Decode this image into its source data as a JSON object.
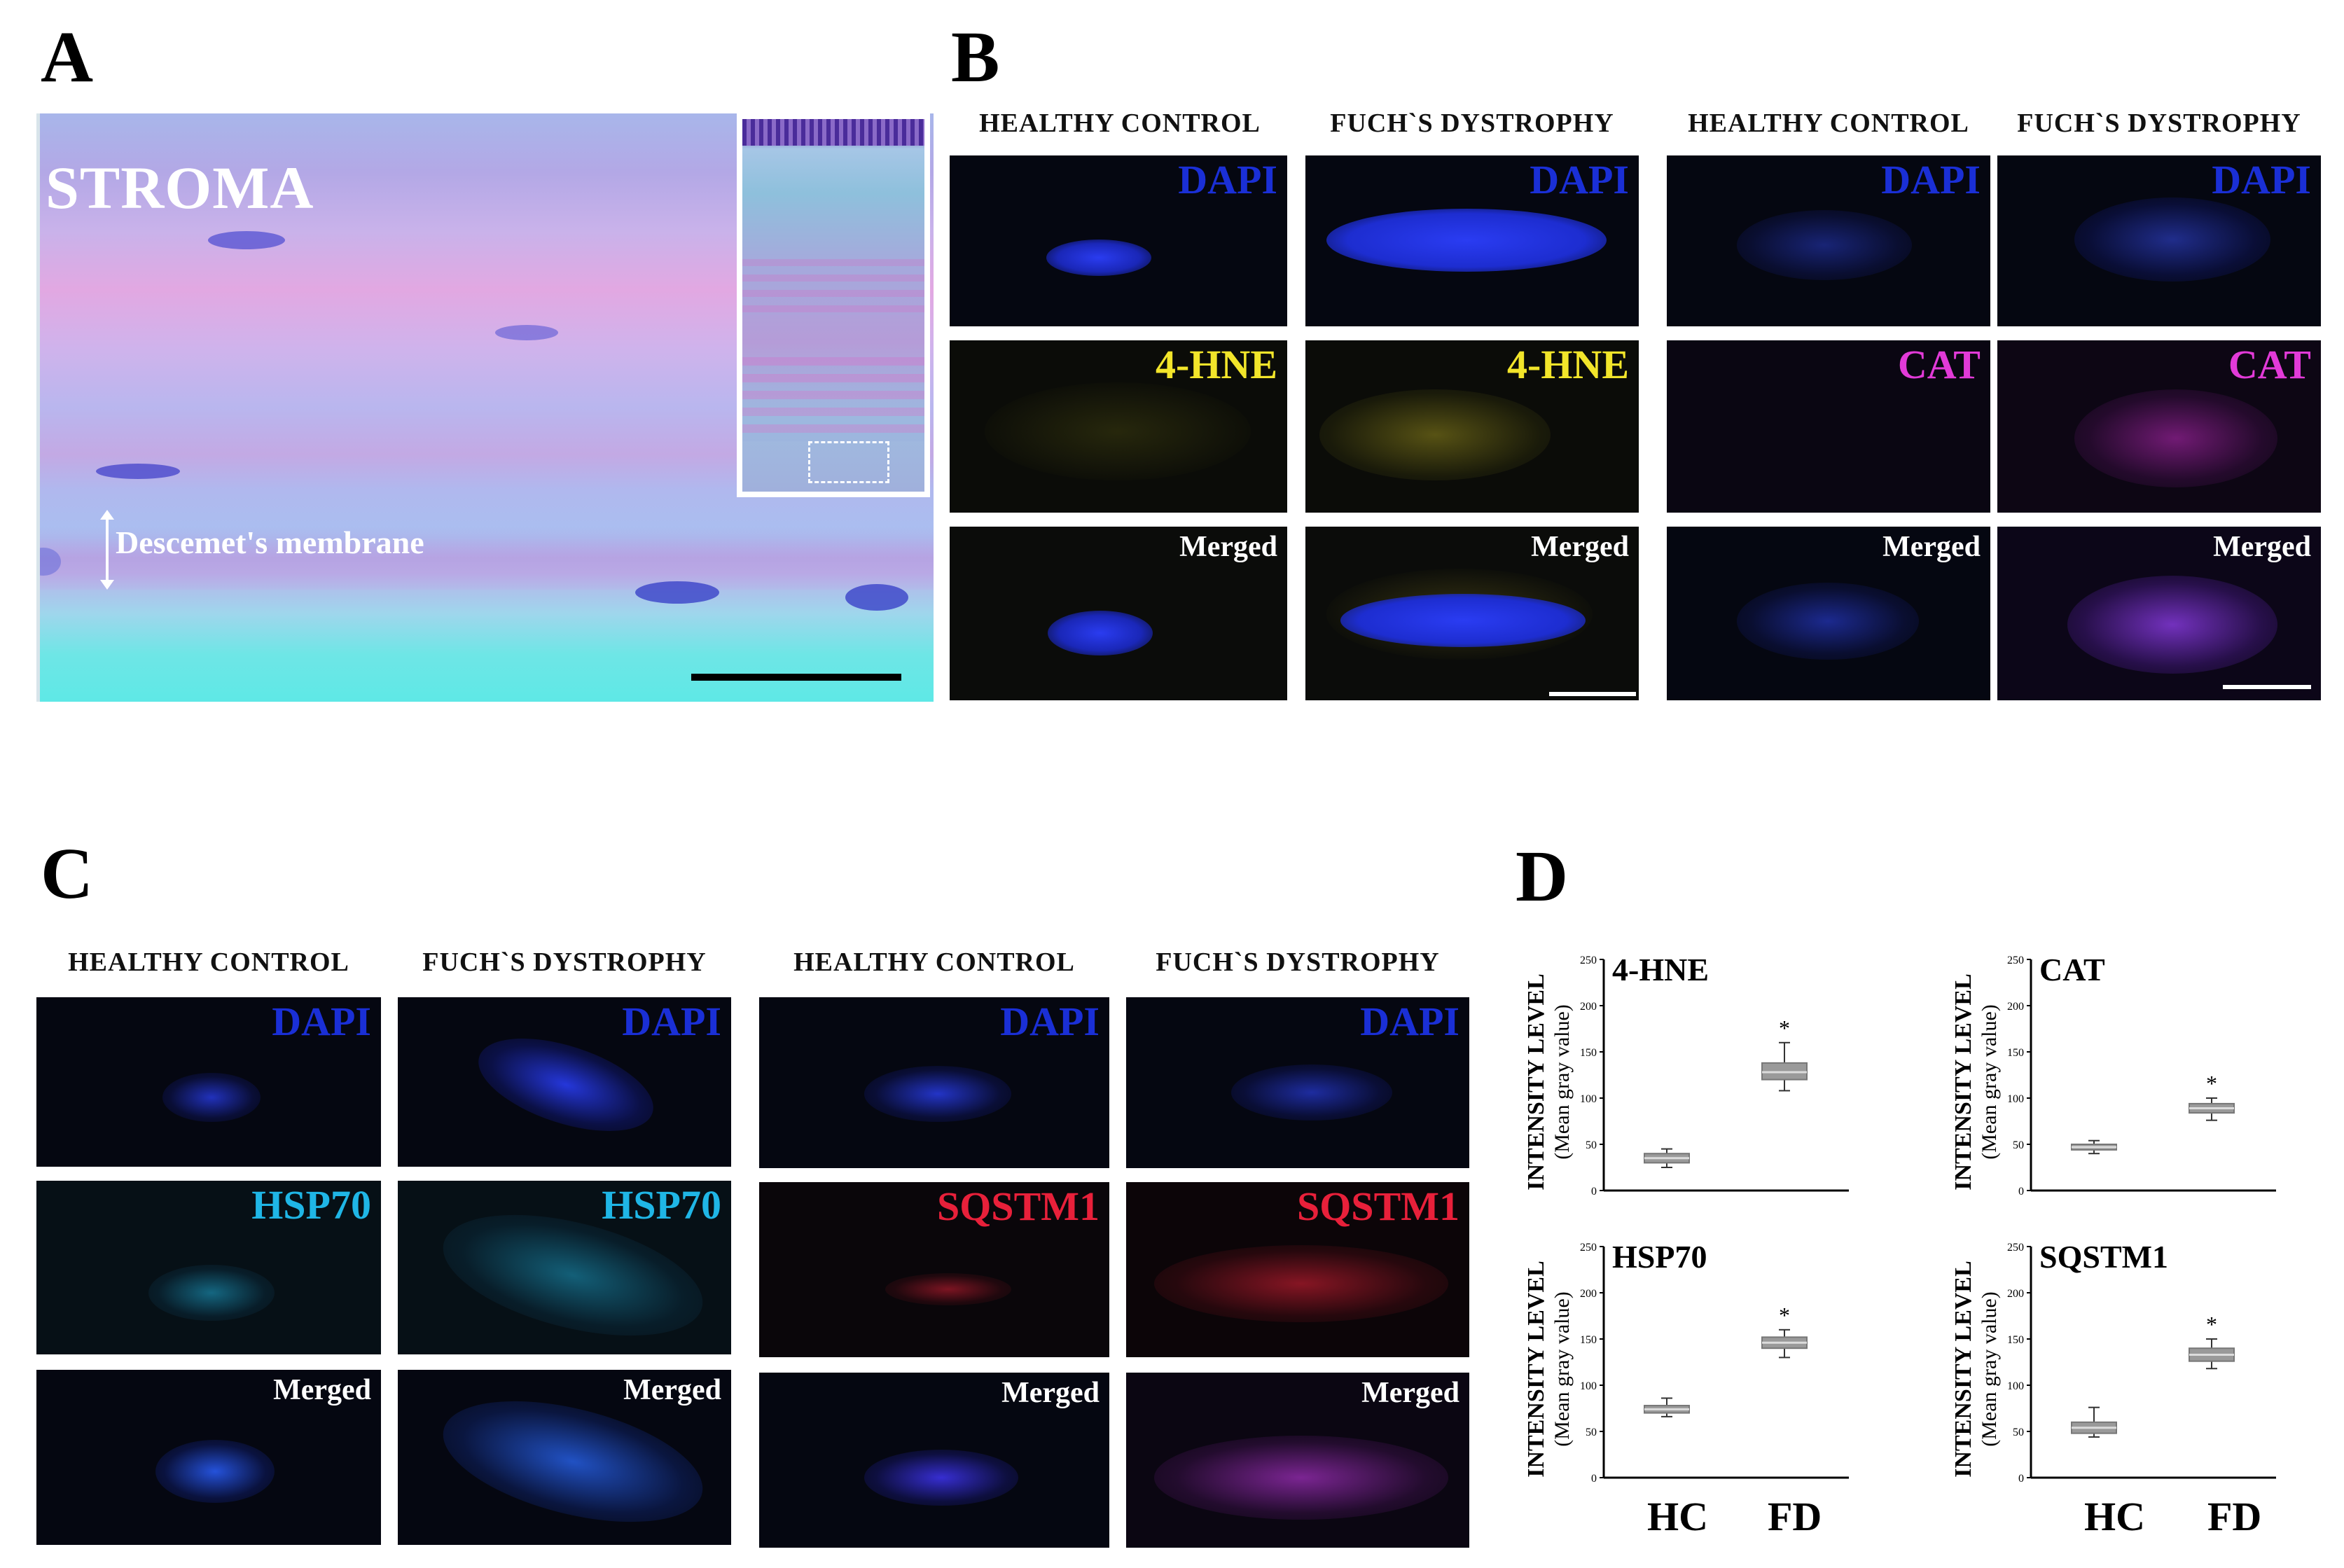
{
  "panels": {
    "a": "A",
    "b": "B",
    "c": "C",
    "d": "D"
  },
  "panel_a": {
    "stroma_label": "STROMA",
    "descemet_label": "Descemet's membrane"
  },
  "headers": {
    "healthy": "HEALTHY CONTROL",
    "fuchs": "FUCH`S DYSTROPHY"
  },
  "markers": {
    "dapi": "DAPI",
    "hne": "4-HNE",
    "cat": "CAT",
    "hsp70": "HSP70",
    "sqstm1": "SQSTM1",
    "merged": "Merged"
  },
  "colors": {
    "dapi": "#1a2fd6",
    "hne": "#f2e52a",
    "cat": "#e23ad8",
    "hsp70": "#1fb6e6",
    "sqstm1": "#e8203a",
    "tile_bg": "#050711"
  },
  "axis": {
    "ylabel_main": "INTENSITY LEVEL",
    "ylabel_sub": "(Mean gray value)"
  },
  "categories": [
    "HC",
    "FD"
  ],
  "chart_data": [
    {
      "type": "box",
      "title": "4-HNE",
      "categories": [
        "HC",
        "FD"
      ],
      "ylim": [
        0,
        250
      ],
      "yticks": [
        0,
        50,
        100,
        150,
        200,
        250
      ],
      "boxes": [
        {
          "min": 25,
          "q1": 30,
          "median": 35,
          "q3": 40,
          "max": 45
        },
        {
          "min": 108,
          "q1": 120,
          "median": 128,
          "q3": 138,
          "max": 160
        }
      ],
      "significance": [
        "",
        "*"
      ],
      "ylabel": "INTENSITY LEVEL (Mean gray value)"
    },
    {
      "type": "box",
      "title": "CAT",
      "categories": [
        "HC",
        "FD"
      ],
      "ylim": [
        0,
        250
      ],
      "yticks": [
        0,
        50,
        100,
        150,
        200,
        250
      ],
      "boxes": [
        {
          "min": 40,
          "q1": 44,
          "median": 47,
          "q3": 50,
          "max": 54
        },
        {
          "min": 76,
          "q1": 84,
          "median": 89,
          "q3": 94,
          "max": 100
        }
      ],
      "significance": [
        "",
        "*"
      ],
      "ylabel": "INTENSITY LEVEL (Mean gray value)"
    },
    {
      "type": "box",
      "title": "HSP70",
      "categories": [
        "HC",
        "FD"
      ],
      "ylim": [
        0,
        250
      ],
      "yticks": [
        0,
        50,
        100,
        150,
        200,
        250
      ],
      "boxes": [
        {
          "min": 66,
          "q1": 70,
          "median": 74,
          "q3": 78,
          "max": 86
        },
        {
          "min": 130,
          "q1": 140,
          "median": 146,
          "q3": 152,
          "max": 160
        }
      ],
      "significance": [
        "",
        "*"
      ],
      "ylabel": "INTENSITY LEVEL (Mean gray value)"
    },
    {
      "type": "box",
      "title": "SQSTM1",
      "categories": [
        "HC",
        "FD"
      ],
      "ylim": [
        0,
        250
      ],
      "yticks": [
        0,
        50,
        100,
        150,
        200,
        250
      ],
      "boxes": [
        {
          "min": 44,
          "q1": 48,
          "median": 54,
          "q3": 60,
          "max": 76
        },
        {
          "min": 118,
          "q1": 126,
          "median": 133,
          "q3": 140,
          "max": 150
        }
      ],
      "significance": [
        "",
        "*"
      ],
      "ylabel": "INTENSITY LEVEL (Mean gray value)"
    }
  ]
}
